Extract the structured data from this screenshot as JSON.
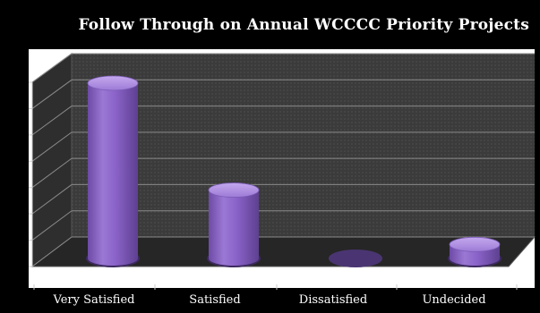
{
  "chart_data": {
    "type": "bar",
    "style": "3d-cylinder",
    "title": "Follow Through on Annual WCCCC Priority Projects",
    "categories": [
      "Very Satisfied",
      "Satisfied",
      "Dissatisfied",
      "Undecided"
    ],
    "values": [
      100,
      39,
      0,
      8
    ],
    "ylim": [
      0,
      100
    ],
    "grid": true,
    "legend": "none",
    "colors": {
      "bar": "#8B63C9",
      "bar_light": "#B89AE6",
      "bar_dark": "#5A3F8A",
      "floor": "#2B2B2B",
      "wall": "#3A3A3A",
      "background": "#000000"
    }
  }
}
